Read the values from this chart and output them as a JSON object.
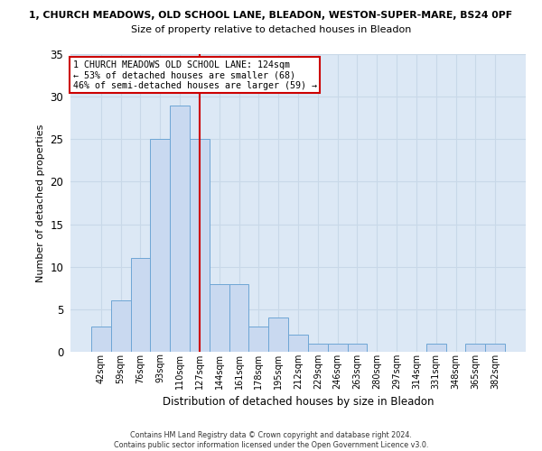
{
  "title_line1": "1, CHURCH MEADOWS, OLD SCHOOL LANE, BLEADON, WESTON-SUPER-MARE, BS24 0PF",
  "title_line2": "Size of property relative to detached houses in Bleadon",
  "xlabel": "Distribution of detached houses by size in Bleadon",
  "ylabel": "Number of detached properties",
  "footer": "Contains HM Land Registry data © Crown copyright and database right 2024.\nContains public sector information licensed under the Open Government Licence v3.0.",
  "bin_labels": [
    "42sqm",
    "59sqm",
    "76sqm",
    "93sqm",
    "110sqm",
    "127sqm",
    "144sqm",
    "161sqm",
    "178sqm",
    "195sqm",
    "212sqm",
    "229sqm",
    "246sqm",
    "263sqm",
    "280sqm",
    "297sqm",
    "314sqm",
    "331sqm",
    "348sqm",
    "365sqm",
    "382sqm"
  ],
  "bar_values": [
    3,
    6,
    11,
    25,
    29,
    25,
    8,
    8,
    3,
    4,
    2,
    1,
    1,
    1,
    0,
    0,
    0,
    1,
    0,
    1,
    1
  ],
  "bar_color": "#c9d9f0",
  "bar_edge_color": "#6ea6d5",
  "subject_bin_index": 5,
  "vline_color": "#cc0000",
  "annotation_text": "1 CHURCH MEADOWS OLD SCHOOL LANE: 124sqm\n← 53% of detached houses are smaller (68)\n46% of semi-detached houses are larger (59) →",
  "annotation_box_color": "#ffffff",
  "annotation_box_edge_color": "#cc0000",
  "ylim": [
    0,
    35
  ],
  "yticks": [
    0,
    5,
    10,
    15,
    20,
    25,
    30,
    35
  ],
  "grid_color": "#c8d8e8",
  "bg_color": "#dce8f5"
}
